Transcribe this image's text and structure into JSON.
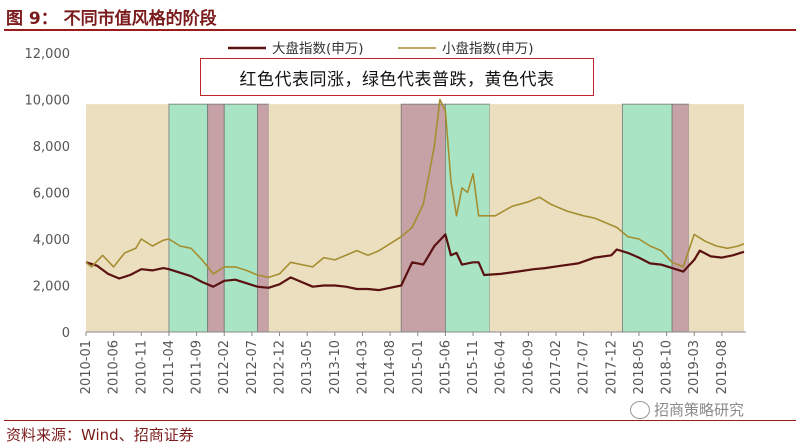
{
  "figure": {
    "title": "图 9： 不同市值风格的阶段",
    "source": "资料来源：Wind、招商证券",
    "watermark": "招商策略研究"
  },
  "chart_data": {
    "type": "line",
    "annotation": "红色代表同涨，绿色代表普跌，黄色代表",
    "ylim": [
      0,
      12000
    ],
    "yticks": [
      0,
      2000,
      4000,
      6000,
      8000,
      10000,
      12000
    ],
    "ytick_labels": [
      "0",
      "2,000",
      "4,000",
      "6,000",
      "8,000",
      "10,000",
      "12,000"
    ],
    "xticks": [
      "2010-01",
      "2010-06",
      "2010-11",
      "2011-04",
      "2011-09",
      "2012-02",
      "2012-07",
      "2012-12",
      "2013-05",
      "2013-10",
      "2014-03",
      "2014-08",
      "2015-01",
      "2015-06",
      "2015-11",
      "2016-04",
      "2016-09",
      "2017-02",
      "2017-07",
      "2017-12",
      "2018-05",
      "2018-10",
      "2019-03",
      "2019-08"
    ],
    "xrange": [
      "2010-01",
      "2019-12"
    ],
    "grid": false,
    "legend_position": "top-center",
    "regimes": [
      {
        "start": "2010-01",
        "end": "2011-04",
        "type": "yellow"
      },
      {
        "start": "2011-04",
        "end": "2011-11",
        "type": "green"
      },
      {
        "start": "2011-11",
        "end": "2012-02",
        "type": "red"
      },
      {
        "start": "2012-02",
        "end": "2012-08",
        "type": "green"
      },
      {
        "start": "2012-08",
        "end": "2012-10",
        "type": "red"
      },
      {
        "start": "2012-10",
        "end": "2014-10",
        "type": "yellow"
      },
      {
        "start": "2014-10",
        "end": "2015-06",
        "type": "red"
      },
      {
        "start": "2015-06",
        "end": "2016-02",
        "type": "green"
      },
      {
        "start": "2016-02",
        "end": "2018-02",
        "type": "yellow"
      },
      {
        "start": "2018-02",
        "end": "2018-11",
        "type": "green"
      },
      {
        "start": "2018-11",
        "end": "2019-02",
        "type": "red"
      },
      {
        "start": "2019-02",
        "end": "2019-12",
        "type": "yellow"
      }
    ],
    "regime_colors": {
      "yellow": "#ecdfc0",
      "green": "#a9e5c5",
      "red": "#c6a1a6"
    },
    "series": [
      {
        "name": "大盘指数(申万)",
        "color": "#5a1111",
        "points": [
          [
            "2010-01",
            3000
          ],
          [
            "2010-03",
            2850
          ],
          [
            "2010-05",
            2500
          ],
          [
            "2010-07",
            2300
          ],
          [
            "2010-09",
            2450
          ],
          [
            "2010-11",
            2700
          ],
          [
            "2011-01",
            2650
          ],
          [
            "2011-03",
            2750
          ],
          [
            "2011-04",
            2700
          ],
          [
            "2011-06",
            2550
          ],
          [
            "2011-08",
            2400
          ],
          [
            "2011-10",
            2150
          ],
          [
            "2011-12",
            1950
          ],
          [
            "2012-02",
            2200
          ],
          [
            "2012-04",
            2250
          ],
          [
            "2012-06",
            2100
          ],
          [
            "2012-08",
            1950
          ],
          [
            "2012-10",
            1900
          ],
          [
            "2012-12",
            2050
          ],
          [
            "2013-02",
            2350
          ],
          [
            "2013-04",
            2150
          ],
          [
            "2013-06",
            1950
          ],
          [
            "2013-08",
            2000
          ],
          [
            "2013-10",
            2000
          ],
          [
            "2013-12",
            1950
          ],
          [
            "2014-02",
            1850
          ],
          [
            "2014-04",
            1850
          ],
          [
            "2014-06",
            1800
          ],
          [
            "2014-08",
            1900
          ],
          [
            "2014-10",
            2000
          ],
          [
            "2014-12",
            3000
          ],
          [
            "2015-02",
            2900
          ],
          [
            "2015-04",
            3700
          ],
          [
            "2015-06",
            4200
          ],
          [
            "2015-07",
            3300
          ],
          [
            "2015-08",
            3400
          ],
          [
            "2015-09",
            2900
          ],
          [
            "2015-11",
            3000
          ],
          [
            "2015-12",
            3000
          ],
          [
            "2016-01",
            2450
          ],
          [
            "2016-04",
            2500
          ],
          [
            "2016-07",
            2600
          ],
          [
            "2016-10",
            2700
          ],
          [
            "2016-12",
            2750
          ],
          [
            "2017-03",
            2850
          ],
          [
            "2017-06",
            2950
          ],
          [
            "2017-09",
            3200
          ],
          [
            "2017-12",
            3300
          ],
          [
            "2018-01",
            3550
          ],
          [
            "2018-03",
            3400
          ],
          [
            "2018-05",
            3200
          ],
          [
            "2018-07",
            2950
          ],
          [
            "2018-09",
            2900
          ],
          [
            "2018-11",
            2750
          ],
          [
            "2019-01",
            2600
          ],
          [
            "2019-03",
            3100
          ],
          [
            "2019-04",
            3500
          ],
          [
            "2019-06",
            3250
          ],
          [
            "2019-08",
            3200
          ],
          [
            "2019-10",
            3300
          ],
          [
            "2019-12",
            3450
          ]
        ]
      },
      {
        "name": "小盘指数(申万)",
        "color": "#a58e30",
        "points": [
          [
            "2010-01",
            3000
          ],
          [
            "2010-02",
            2800
          ],
          [
            "2010-04",
            3300
          ],
          [
            "2010-06",
            2800
          ],
          [
            "2010-08",
            3400
          ],
          [
            "2010-10",
            3600
          ],
          [
            "2010-11",
            4000
          ],
          [
            "2011-01",
            3700
          ],
          [
            "2011-03",
            3950
          ],
          [
            "2011-04",
            4000
          ],
          [
            "2011-06",
            3700
          ],
          [
            "2011-08",
            3600
          ],
          [
            "2011-10",
            3100
          ],
          [
            "2011-12",
            2500
          ],
          [
            "2012-02",
            2800
          ],
          [
            "2012-04",
            2800
          ],
          [
            "2012-06",
            2650
          ],
          [
            "2012-08",
            2450
          ],
          [
            "2012-10",
            2350
          ],
          [
            "2012-12",
            2500
          ],
          [
            "2013-02",
            3000
          ],
          [
            "2013-04",
            2900
          ],
          [
            "2013-06",
            2800
          ],
          [
            "2013-08",
            3200
          ],
          [
            "2013-10",
            3100
          ],
          [
            "2013-12",
            3300
          ],
          [
            "2014-02",
            3500
          ],
          [
            "2014-04",
            3300
          ],
          [
            "2014-06",
            3500
          ],
          [
            "2014-08",
            3800
          ],
          [
            "2014-10",
            4100
          ],
          [
            "2014-12",
            4500
          ],
          [
            "2015-02",
            5500
          ],
          [
            "2015-04",
            8000
          ],
          [
            "2015-05",
            10000
          ],
          [
            "2015-06",
            9500
          ],
          [
            "2015-07",
            6500
          ],
          [
            "2015-08",
            5000
          ],
          [
            "2015-09",
            6200
          ],
          [
            "2015-10",
            6000
          ],
          [
            "2015-11",
            6800
          ],
          [
            "2015-12",
            5000
          ],
          [
            "2016-01",
            5000
          ],
          [
            "2016-03",
            5000
          ],
          [
            "2016-06",
            5400
          ],
          [
            "2016-09",
            5600
          ],
          [
            "2016-11",
            5800
          ],
          [
            "2017-01",
            5500
          ],
          [
            "2017-04",
            5200
          ],
          [
            "2017-07",
            5000
          ],
          [
            "2017-09",
            4900
          ],
          [
            "2017-12",
            4600
          ],
          [
            "2018-01",
            4500
          ],
          [
            "2018-03",
            4100
          ],
          [
            "2018-05",
            4000
          ],
          [
            "2018-07",
            3700
          ],
          [
            "2018-09",
            3500
          ],
          [
            "2018-11",
            3000
          ],
          [
            "2019-01",
            2800
          ],
          [
            "2019-03",
            4200
          ],
          [
            "2019-05",
            3900
          ],
          [
            "2019-07",
            3700
          ],
          [
            "2019-09",
            3600
          ],
          [
            "2019-11",
            3700
          ],
          [
            "2019-12",
            3800
          ]
        ]
      }
    ]
  }
}
